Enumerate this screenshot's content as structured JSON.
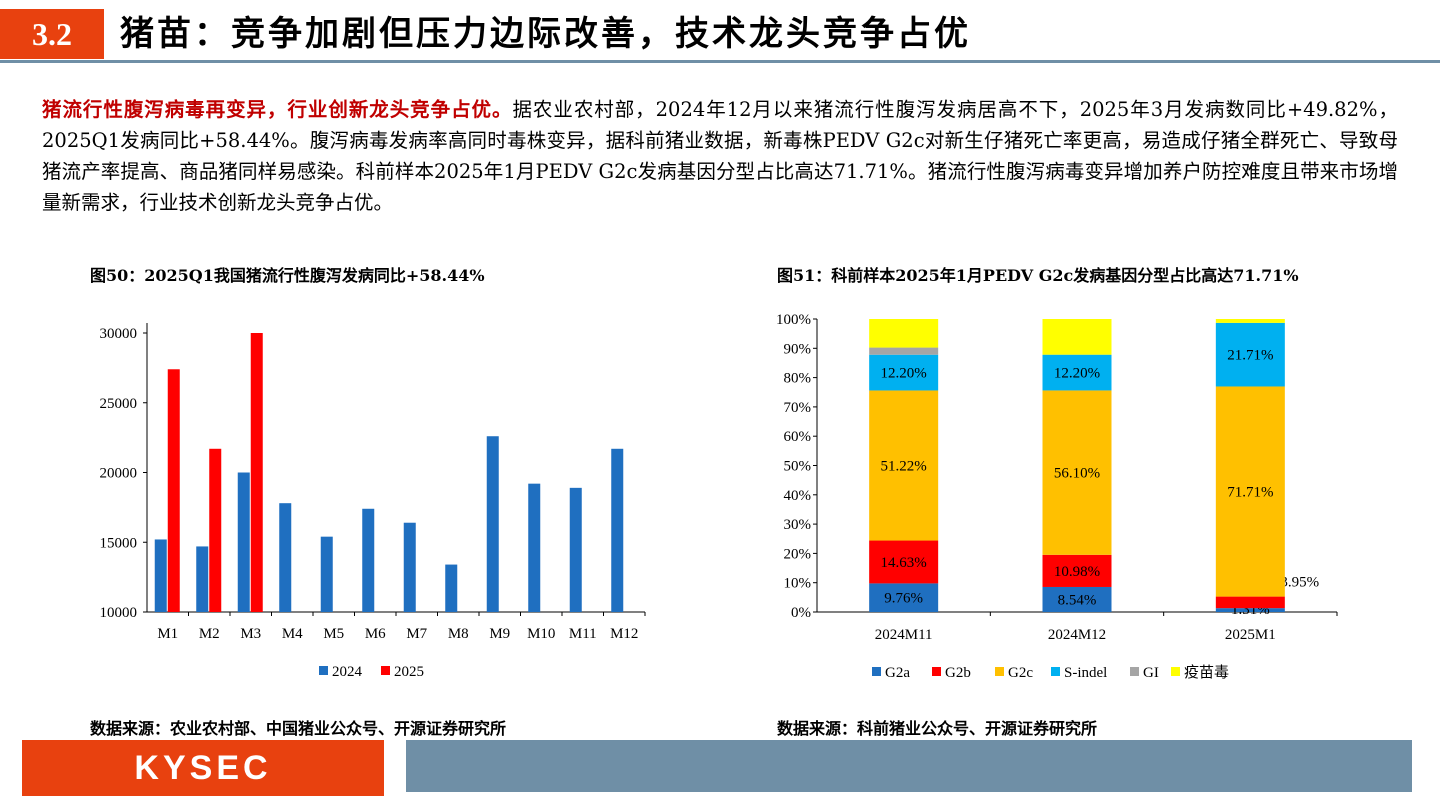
{
  "header": {
    "section": "3.2",
    "title": "猪苗：竞争加剧但压力边际改善，技术龙头竞争占优"
  },
  "intro": {
    "lead": "猪流行性腹泻病毒再变异，行业创新龙头竞争占优。",
    "body": "据农业农村部，2024年12月以来猪流行性腹泻发病居高不下，2025年3月发病数同比+49.82%，2025Q1发病同比+58.44%。腹泻病毒发病率高同时毒株变异，据科前猪业数据，新毒株PEDV G2c对新生仔猪死亡率更高，易造成仔猪全群死亡、导致母猪流产率提高、商品猪同样易感染。科前样本2025年1月PEDV G2c发病基因分型占比高达71.71%。猪流行性腹泻病毒变异增加养户防控难度且带来市场增量新需求，行业技术创新龙头竞争占优。"
  },
  "figures": {
    "fig50_title": "图50：2025Q1我国猪流行性腹泻发病同比+58.44%",
    "fig51_title": "图51：科前样本2025年1月PEDV G2c发病基因分型占比高达71.71%",
    "fig50_source": "数据来源：农业农村部、中国猪业公众号、开源证券研究所",
    "fig51_source": "数据来源：科前猪业公众号、开源证券研究所"
  },
  "footer": {
    "logo": "KYSEC"
  },
  "chart_data": [
    {
      "type": "bar",
      "title": "图50：2025Q1我国猪流行性腹泻发病同比+58.44%",
      "categories": [
        "M1",
        "M2",
        "M3",
        "M4",
        "M5",
        "M6",
        "M7",
        "M8",
        "M9",
        "M10",
        "M11",
        "M12"
      ],
      "series": [
        {
          "name": "2024",
          "color": "#1f6fc0",
          "values": [
            15200,
            14700,
            20000,
            17800,
            15400,
            17400,
            16400,
            13400,
            22600,
            19200,
            18900,
            21700
          ]
        },
        {
          "name": "2025",
          "color": "#ff0000",
          "values": [
            27400,
            21700,
            30000,
            null,
            null,
            null,
            null,
            null,
            null,
            null,
            null,
            null
          ]
        }
      ],
      "ylim": [
        10000,
        30000
      ],
      "yticks": [
        10000,
        15000,
        20000,
        25000,
        30000
      ],
      "legend": "bottom-center"
    },
    {
      "type": "bar",
      "stacked": true,
      "title": "图51：科前样本2025年1月PEDV G2c发病基因分型占比高达71.71%",
      "categories": [
        "2024M11",
        "2024M12",
        "2025M1"
      ],
      "series": [
        {
          "name": "G2a",
          "color": "#1f6fc0",
          "values": [
            9.76,
            8.54,
            1.31
          ],
          "labels": [
            "9.76%",
            "8.54%",
            "1.31%"
          ]
        },
        {
          "name": "G2b",
          "color": "#ff0000",
          "values": [
            14.63,
            10.98,
            3.95
          ],
          "labels": [
            "14.63%",
            "10.98%",
            "3.95%"
          ]
        },
        {
          "name": "G2c",
          "color": "#ffc000",
          "values": [
            51.22,
            56.1,
            71.71
          ],
          "labels": [
            "51.22%",
            "56.10%",
            "71.71%"
          ]
        },
        {
          "name": "S-indel",
          "color": "#00b0f0",
          "values": [
            12.2,
            12.2,
            21.71
          ],
          "labels": [
            "12.20%",
            "12.20%",
            "21.71%"
          ]
        },
        {
          "name": "GI",
          "color": "#a5a5a5",
          "values": [
            2.44,
            0,
            0
          ],
          "labels": [
            "",
            "",
            ""
          ]
        },
        {
          "name": "疫苗毒",
          "color": "#ffff00",
          "values": [
            9.75,
            12.18,
            1.32
          ],
          "labels": [
            "",
            "",
            ""
          ]
        }
      ],
      "ylim": [
        0,
        100
      ],
      "yticks": [
        "0%",
        "10%",
        "20%",
        "30%",
        "40%",
        "50%",
        "60%",
        "70%",
        "80%",
        "90%",
        "100%"
      ],
      "legend": "bottom-center"
    }
  ]
}
